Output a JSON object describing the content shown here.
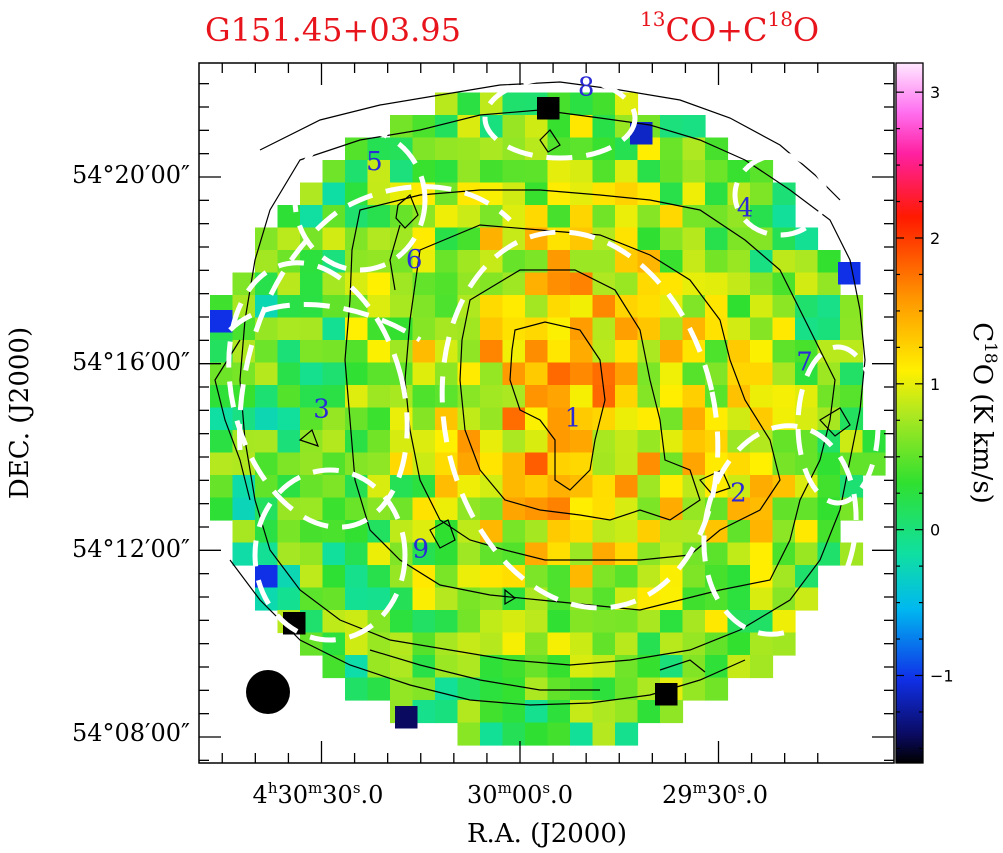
{
  "chart_data": {
    "type": "heatmap",
    "title_left": "G151.45+03.95",
    "title_right": {
      "iso1_mass": "13",
      "iso1_base": "CO+C",
      "iso2_mass": "18",
      "iso2_base": "O"
    },
    "xlabel": "R.A. (J2000)",
    "ylabel": "DEC. (J2000)",
    "colorbar": {
      "label_base": "C",
      "label_sup": "18",
      "label_rest": "O (K km/s)",
      "range": [
        -1.6,
        3.2
      ],
      "ticks": [
        -1,
        0,
        1,
        2,
        3
      ],
      "tick_labels": [
        "−1",
        "0",
        "1",
        "2",
        "3"
      ]
    },
    "dec_ticks": [
      {
        "label": "54°20′00″",
        "dec_arcmin": 20
      },
      {
        "label": "54°16′00″",
        "dec_arcmin": 16
      },
      {
        "label": "54°12′00″",
        "dec_arcmin": 12
      },
      {
        "label": "54°08′00″",
        "dec_arcmin": 8
      }
    ],
    "ra_ticks": [
      {
        "h": "4",
        "m": "30",
        "s": "30",
        "frac": "0",
        "show_h": true,
        "show_m": true,
        "ra_s": 30
      },
      {
        "h": "",
        "m": "30",
        "s": "00",
        "frac": "0",
        "show_h": false,
        "show_m": true,
        "ra_s": 0
      },
      {
        "h": "",
        "m": "29",
        "s": "30",
        "frac": "0",
        "show_h": false,
        "show_m": true,
        "ra_s": -30
      }
    ],
    "dec_range_arcmin": [
      7.4,
      23.1
    ],
    "ra_range_s": [
      48,
      -47
    ],
    "sources": [
      {
        "label": "1",
        "ra_s": -8,
        "dec_arcmin": 14.8
      },
      {
        "label": "2",
        "ra_s": -33,
        "dec_arcmin": 13.2
      },
      {
        "label": "3",
        "ra_s": 30,
        "dec_arcmin": 15.0
      },
      {
        "label": "4",
        "ra_s": -34,
        "dec_arcmin": 19.3
      },
      {
        "label": "5",
        "ra_s": 22,
        "dec_arcmin": 20.3
      },
      {
        "label": "6",
        "ra_s": 16,
        "dec_arcmin": 18.2
      },
      {
        "label": "7",
        "ra_s": -43,
        "dec_arcmin": 16.0
      },
      {
        "label": "8",
        "ra_s": -10,
        "dec_arcmin": 21.9
      },
      {
        "label": "9",
        "ra_s": 15,
        "dec_arcmin": 12.0
      }
    ],
    "beam": "filled-circle"
  }
}
